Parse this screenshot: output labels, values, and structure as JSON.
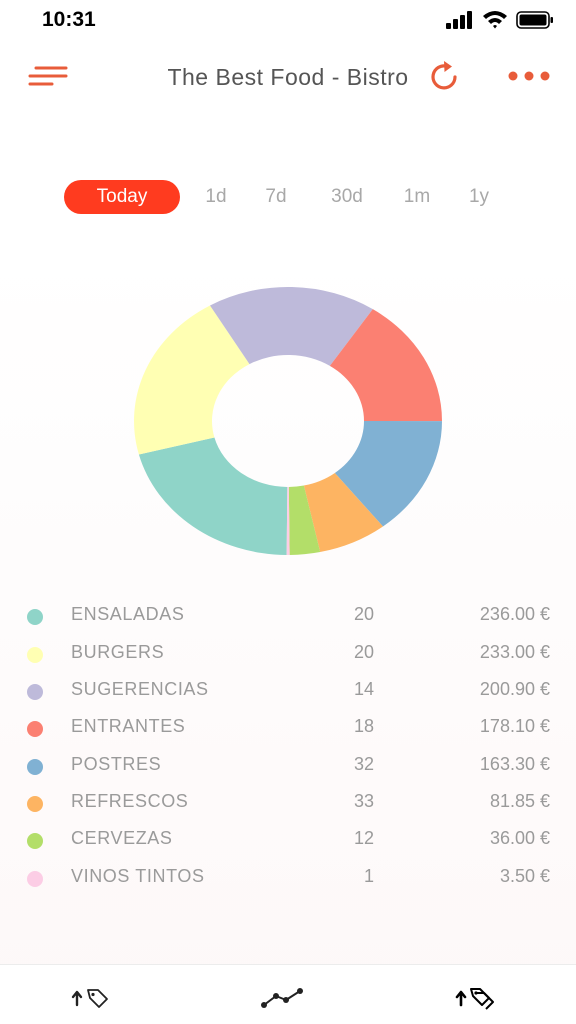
{
  "status_bar": {
    "time": "10:31"
  },
  "header": {
    "title": "The Best Food - Bistro"
  },
  "periods": [
    {
      "label": "Today",
      "active": true
    },
    {
      "label": "1d",
      "active": false
    },
    {
      "label": "7d",
      "active": false
    },
    {
      "label": "30d",
      "active": false
    },
    {
      "label": "1m",
      "active": false
    },
    {
      "label": "1y",
      "active": false
    }
  ],
  "chart_data": {
    "type": "pie",
    "donut": true,
    "legend": "below",
    "categories": [
      "ENSALADAS",
      "BURGERS",
      "SUGERENCIAS",
      "ENTRANTES",
      "POSTRES",
      "REFRESCOS",
      "CERVEZAS",
      "VINOS TINTOS"
    ],
    "counts": [
      20,
      20,
      14,
      18,
      32,
      33,
      12,
      1
    ],
    "values": [
      236.0,
      233.0,
      200.9,
      178.1,
      163.3,
      81.85,
      36.0,
      3.5
    ],
    "amount_labels": [
      "236.00 €",
      "233.00 €",
      "200.90 €",
      "178.10 €",
      "163.30 €",
      "81.85 €",
      "36.00 €",
      "3.50 €"
    ],
    "colors": [
      "#8fd4c8",
      "#ffffb3",
      "#bebada",
      "#fb8072",
      "#80b1d3",
      "#fdb462",
      "#b3de69",
      "#fccde5"
    ]
  },
  "bottom_bar": {
    "icons": [
      "upload-tag-icon",
      "trend-line-icon",
      "upload-tags-icon"
    ]
  }
}
